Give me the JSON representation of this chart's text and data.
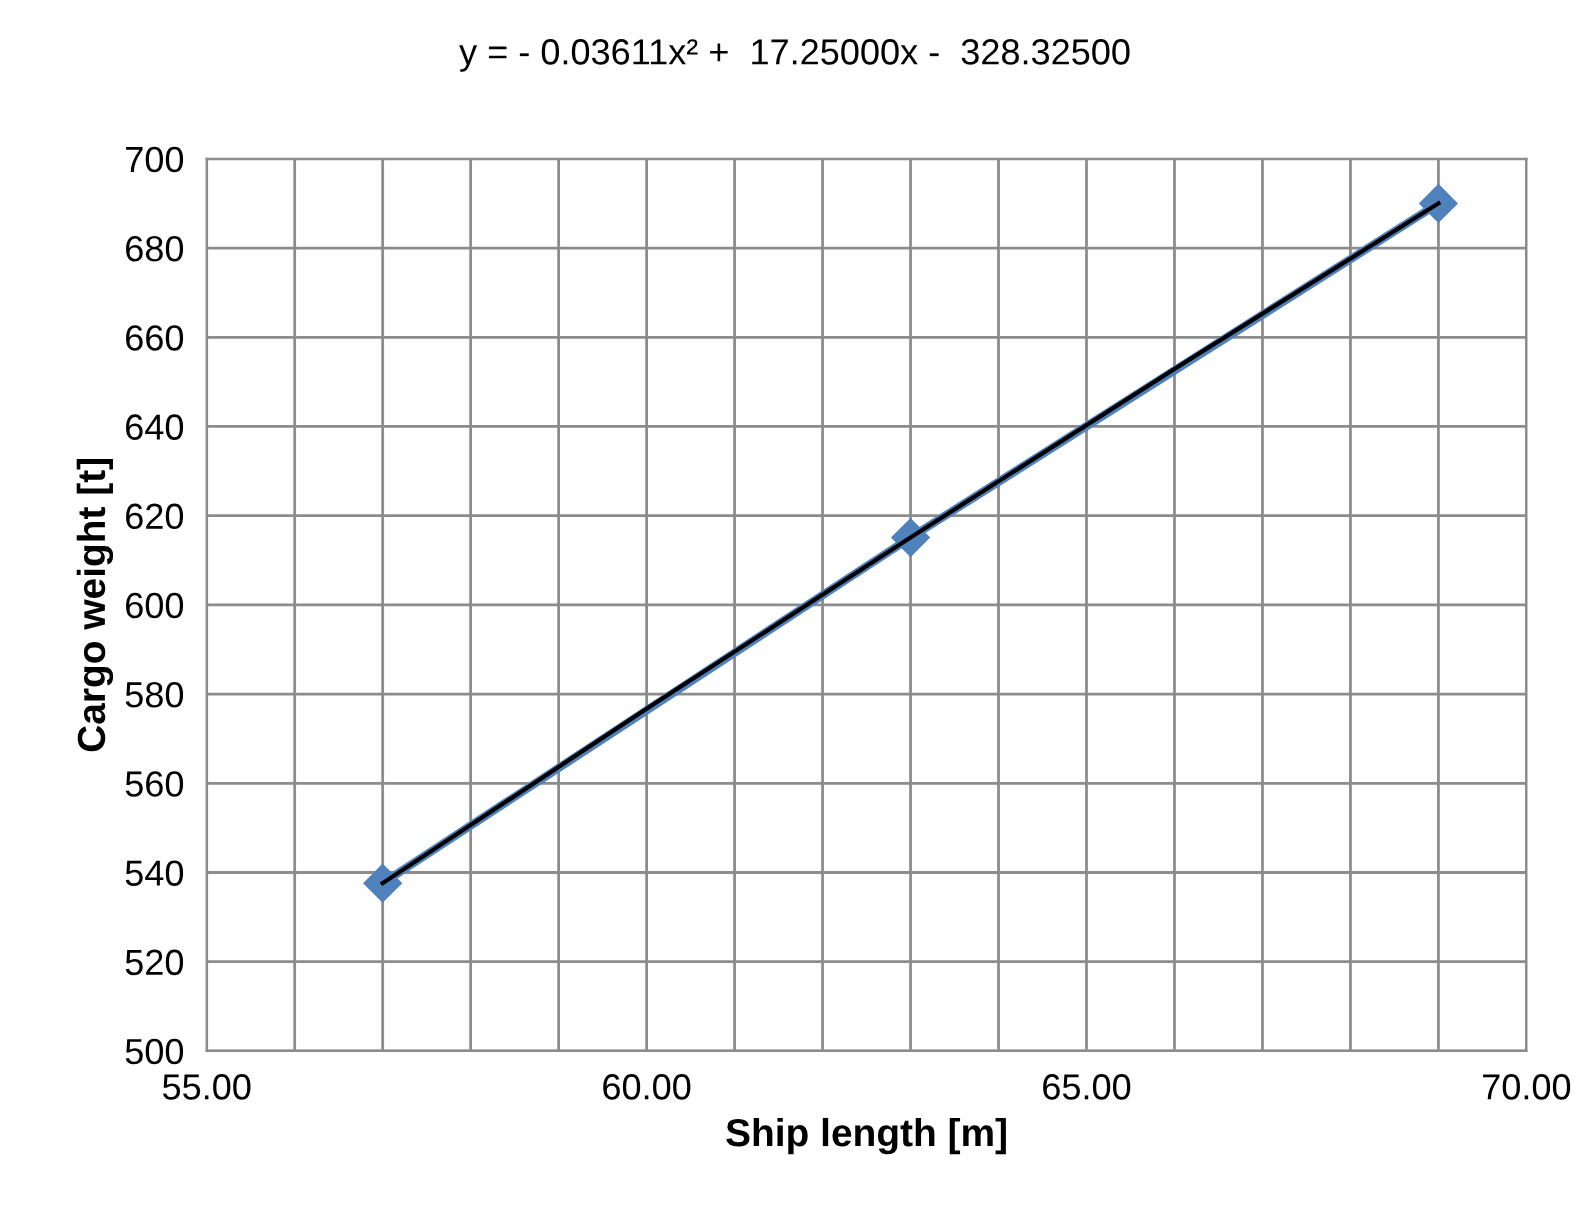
{
  "chart_data": {
    "type": "line",
    "title": "y = - 0.03611x² +  17.25000x -  328.32500",
    "xlabel": "Ship length [m]",
    "ylabel": "Cargo weight [t]",
    "series": [
      {
        "color": "#4f81bd",
        "x": [
          57,
          63,
          69
        ],
        "values": [
          537.6,
          615.1,
          690.0
        ],
        "marker": "diamond"
      },
      {
        "type": "line",
        "color": "#000000",
        "x": [
          57,
          60,
          63,
          66,
          69
        ],
        "values": [
          537.6,
          576.7,
          615.1,
          652.9,
          690.0
        ],
        "marker": "none"
      }
    ],
    "xlim": [
      55,
      70
    ],
    "ylim": [
      500,
      700
    ],
    "xticks": [
      {
        "value": 55,
        "label": "55.00"
      },
      {
        "value": 56,
        "label": null
      },
      {
        "value": 57,
        "label": null
      },
      {
        "value": 58,
        "label": null
      },
      {
        "value": 59,
        "label": null
      },
      {
        "value": 60,
        "label": "60.00"
      },
      {
        "value": 61,
        "label": null
      },
      {
        "value": 62,
        "label": null
      },
      {
        "value": 63,
        "label": null
      },
      {
        "value": 64,
        "label": null
      },
      {
        "value": 65,
        "label": "65.00"
      },
      {
        "value": 66,
        "label": null
      },
      {
        "value": 67,
        "label": null
      },
      {
        "value": 68,
        "label": null
      },
      {
        "value": 69,
        "label": null
      },
      {
        "value": 70,
        "label": "70.00"
      }
    ],
    "yticks": [
      500,
      520,
      540,
      560,
      580,
      600,
      620,
      640,
      660,
      680,
      700
    ],
    "grid": true,
    "legend": false
  }
}
